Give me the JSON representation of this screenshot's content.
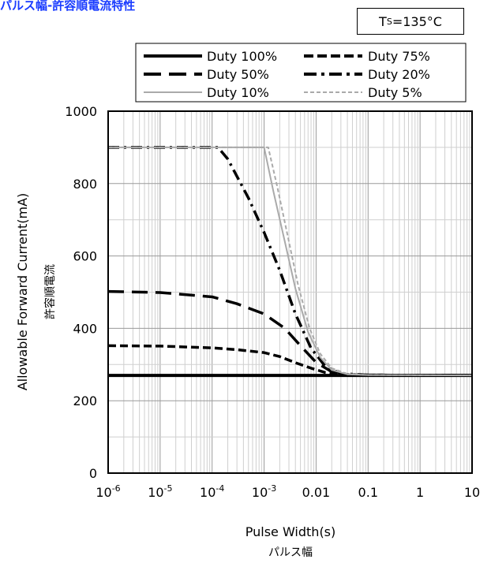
{
  "header": {
    "title": "パルス幅-許容順電流特性",
    "condition_main": "T",
    "condition_sub": "S",
    "condition_value": "=135°C"
  },
  "chart_data": {
    "type": "line",
    "xlabel": "Pulse Width(s)",
    "xlabel_jp": "パルス幅",
    "ylabel": "Allowable Forward Current(mA)",
    "ylabel_jp": "許容順電流",
    "x_scale": "log",
    "xlim": [
      1e-06,
      10
    ],
    "ylim": [
      0,
      1000
    ],
    "grid": true,
    "legend_position": "top",
    "x_tick_labels": [
      {
        "value": 1e-06,
        "base": "10",
        "exp": "-6"
      },
      {
        "value": 1e-05,
        "base": "10",
        "exp": "-5"
      },
      {
        "value": 0.0001,
        "base": "10",
        "exp": "-4"
      },
      {
        "value": 0.001,
        "base": "10",
        "exp": "-3"
      },
      {
        "value": 0.01,
        "base": "0.01",
        "exp": ""
      },
      {
        "value": 0.1,
        "base": "0.1",
        "exp": ""
      },
      {
        "value": 1,
        "base": "1",
        "exp": ""
      },
      {
        "value": 10,
        "base": "10",
        "exp": ""
      }
    ],
    "y_ticks": [
      0,
      200,
      400,
      600,
      800,
      1000
    ],
    "series": [
      {
        "name": "Duty 100%",
        "color": "#000000",
        "style": "solid-thick",
        "points": [
          [
            1e-06,
            270
          ],
          [
            10,
            270
          ]
        ]
      },
      {
        "name": "Duty 75%",
        "color": "#000000",
        "style": "dash-medium",
        "points": [
          [
            1e-06,
            352
          ],
          [
            1e-05,
            351
          ],
          [
            0.0001,
            346
          ],
          [
            0.0003,
            341
          ],
          [
            0.001,
            333
          ],
          [
            0.002,
            322
          ],
          [
            0.004,
            305
          ],
          [
            0.008,
            290
          ],
          [
            0.015,
            278
          ],
          [
            0.03,
            272
          ],
          [
            0.1,
            271
          ],
          [
            10,
            270
          ]
        ]
      },
      {
        "name": "Duty 50%",
        "color": "#000000",
        "style": "dash-long",
        "points": [
          [
            1e-06,
            502
          ],
          [
            1e-05,
            499
          ],
          [
            0.0001,
            487
          ],
          [
            0.0003,
            468
          ],
          [
            0.001,
            440
          ],
          [
            0.0025,
            400
          ],
          [
            0.005,
            352
          ],
          [
            0.01,
            306
          ],
          [
            0.02,
            280
          ],
          [
            0.04,
            272
          ],
          [
            0.1,
            271
          ],
          [
            10,
            270
          ]
        ]
      },
      {
        "name": "Duty 20%",
        "color": "#000000",
        "style": "dash-dot",
        "points": [
          [
            1e-06,
            900
          ],
          [
            0.00013,
            900
          ],
          [
            0.0002,
            868
          ],
          [
            0.0005,
            760
          ],
          [
            0.001,
            665
          ],
          [
            0.002,
            560
          ],
          [
            0.004,
            440
          ],
          [
            0.008,
            345
          ],
          [
            0.015,
            295
          ],
          [
            0.03,
            275
          ],
          [
            0.1,
            271
          ],
          [
            10,
            270
          ]
        ]
      },
      {
        "name": "Duty 10%",
        "color": "#aaaaaa",
        "style": "solid-gray",
        "points": [
          [
            1e-06,
            900
          ],
          [
            0.001,
            900
          ],
          [
            0.0015,
            780
          ],
          [
            0.0025,
            640
          ],
          [
            0.004,
            510
          ],
          [
            0.007,
            390
          ],
          [
            0.012,
            320
          ],
          [
            0.02,
            285
          ],
          [
            0.04,
            273
          ],
          [
            0.1,
            271
          ],
          [
            10,
            270
          ]
        ]
      },
      {
        "name": "Duty 5%",
        "color": "#aaaaaa",
        "style": "dash-gray",
        "points": [
          [
            1e-06,
            900
          ],
          [
            0.0012,
            900
          ],
          [
            0.0018,
            790
          ],
          [
            0.0028,
            660
          ],
          [
            0.0045,
            520
          ],
          [
            0.0075,
            400
          ],
          [
            0.012,
            330
          ],
          [
            0.02,
            290
          ],
          [
            0.04,
            274
          ],
          [
            0.1,
            271
          ],
          [
            10,
            270
          ]
        ]
      }
    ]
  }
}
